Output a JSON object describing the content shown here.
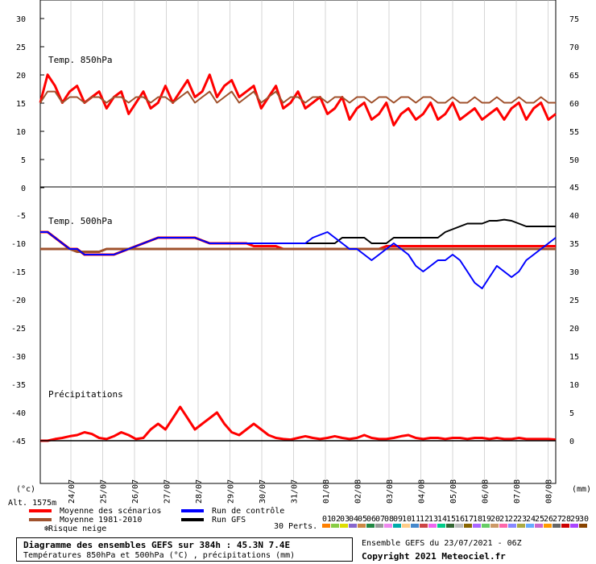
{
  "chart_data": {
    "type": "line",
    "panels": [
      {
        "title": "Temp. 850hPa",
        "y_left_ticks": [
          "30",
          "25",
          "20",
          "15",
          "10",
          "5",
          "0"
        ],
        "y_right_ticks": [
          "75",
          "70",
          "65",
          "60",
          "55",
          "50"
        ],
        "ylim": [
          0,
          30
        ],
        "series": [
          {
            "name": "Moyenne des scénarios",
            "color": "#ff0000",
            "values": [
              15,
              20,
              18,
              15,
              17,
              18,
              15,
              16,
              17,
              14,
              16,
              17,
              13,
              15,
              17,
              14,
              15,
              18,
              15,
              17,
              19,
              16,
              17,
              20,
              16,
              18,
              19,
              16,
              17,
              18,
              14,
              16,
              18,
              14,
              15,
              17,
              14,
              15,
              16,
              13,
              14,
              16,
              12,
              14,
              15,
              12,
              13,
              15,
              11,
              13,
              14,
              12,
              13,
              15,
              12,
              13,
              15,
              12,
              13,
              14,
              12,
              13,
              14,
              12,
              14,
              15,
              12,
              14,
              15,
              12,
              13
            ]
          },
          {
            "name": "Moyenne 1981-2010",
            "color": "#a0522d",
            "values": [
              15,
              17,
              17,
              15,
              16,
              16,
              15,
              16,
              16,
              15,
              16,
              16,
              15,
              16,
              16,
              15,
              16,
              16,
              15,
              16,
              17,
              15,
              16,
              17,
              15,
              16,
              17,
              15,
              16,
              17,
              15,
              16,
              17,
              15,
              16,
              16,
              15,
              16,
              16,
              15,
              16,
              16,
              15,
              16,
              16,
              15,
              16,
              16,
              15,
              16,
              16,
              15,
              16,
              16,
              15,
              15,
              16,
              15,
              15,
              16,
              15,
              15,
              16,
              15,
              15,
              16,
              15,
              15,
              16,
              15,
              15
            ]
          }
        ]
      },
      {
        "title": "Temp. 500hPa",
        "y_left_ticks": [
          "-5",
          "-10",
          "-15",
          "-20"
        ],
        "y_right_ticks": [
          "45",
          "40",
          "35",
          "30",
          "25"
        ],
        "ylim": [
          -20,
          -5
        ],
        "series": [
          {
            "name": "Moyenne des scénarios",
            "color": "#ff0000",
            "values": [
              -8,
              -8,
              -9,
              -10,
              -11,
              -11,
              -12,
              -12,
              -12,
              -12,
              -12,
              -11.5,
              -11,
              -10.5,
              -10,
              -9.5,
              -9,
              -9,
              -9,
              -9,
              -9,
              -9,
              -9.5,
              -10,
              -10,
              -10,
              -10,
              -10,
              -10,
              -10.5,
              -10.5,
              -10.5,
              -10.5,
              -11,
              -11,
              -11,
              -11,
              -11,
              -11,
              -11,
              -11,
              -11,
              -11,
              -11,
              -11,
              -11,
              -11,
              -10.5,
              -10.5,
              -10.5,
              -10.5,
              -10.5,
              -10.5,
              -10.5,
              -10.5,
              -10.5,
              -10.5,
              -10.5,
              -10.5,
              -10.5,
              -10.5,
              -10.5,
              -10.5,
              -10.5,
              -10.5,
              -10.5,
              -10.5,
              -10.5,
              -10.5,
              -10.5,
              -10.5
            ]
          },
          {
            "name": "Moyenne 1981-2010",
            "color": "#a0522d",
            "values": [
              -11,
              -11,
              -11,
              -11,
              -11,
              -11.5,
              -11.5,
              -11.5,
              -11.5,
              -11,
              -11,
              -11,
              -11,
              -11,
              -11,
              -11,
              -11,
              -11,
              -11,
              -11,
              -11,
              -11,
              -11,
              -11,
              -11,
              -11,
              -11,
              -11,
              -11,
              -11,
              -11,
              -11,
              -11,
              -11,
              -11,
              -11,
              -11,
              -11,
              -11,
              -11,
              -11,
              -11,
              -11,
              -11,
              -11,
              -11,
              -11,
              -11,
              -11,
              -11,
              -11,
              -11,
              -11,
              -11,
              -11,
              -11,
              -11,
              -11,
              -11,
              -11,
              -11,
              -11,
              -11,
              -11,
              -11,
              -11,
              -11,
              -11,
              -11,
              -11,
              -11
            ]
          },
          {
            "name": "Run GFS",
            "color": "#000000",
            "values": [
              -8,
              -8,
              -9,
              -10,
              -11,
              -11,
              -12,
              -12,
              -12,
              -12,
              -12,
              -11.5,
              -11,
              -10.5,
              -10,
              -9.5,
              -9,
              -9,
              -9,
              -9,
              -9,
              -9,
              -9.5,
              -10,
              -10,
              -10,
              -10,
              -10,
              -10,
              -10,
              -10,
              -10,
              -10,
              -10,
              -10,
              -10,
              -10,
              -10,
              -10,
              -10,
              -10,
              -9,
              -9,
              -9,
              -9,
              -10,
              -10,
              -10,
              -9,
              -9,
              -9,
              -9,
              -9,
              -9,
              -9,
              -8,
              -7.5,
              -7,
              -6.5,
              -6.5,
              -6.5,
              -6,
              -6,
              -5.8,
              -6,
              -6.5,
              -7,
              -7,
              -7,
              -7,
              -7
            ]
          },
          {
            "name": "Run de contrôle",
            "color": "#0000ff",
            "values": [
              -8,
              -8,
              -9,
              -10,
              -11,
              -11,
              -12,
              -12,
              -12,
              -12,
              -12,
              -11.5,
              -11,
              -10.5,
              -10,
              -9.5,
              -9,
              -9,
              -9,
              -9,
              -9,
              -9,
              -9.5,
              -10,
              -10,
              -10,
              -10,
              -10,
              -10,
              -10,
              -10,
              -10,
              -10,
              -10,
              -10,
              -10,
              -10,
              -9,
              -8.5,
              -8,
              -9,
              -10,
              -11,
              -11,
              -12,
              -13,
              -12,
              -11,
              -10,
              -11,
              -12,
              -14,
              -15,
              -14,
              -13,
              -13,
              -12,
              -13,
              -15,
              -17,
              -18,
              -16,
              -14,
              -15,
              -16,
              -15,
              -13,
              -12,
              -11,
              -10,
              -9
            ]
          }
        ]
      },
      {
        "title": "Précipitations",
        "y_left_ticks": [
          "-25",
          "-30",
          "-35",
          "-40",
          "-45"
        ],
        "y_right_ticks": [
          "20",
          "15",
          "10",
          "5",
          "0"
        ],
        "ylim": [
          0,
          25
        ],
        "series": [
          {
            "name": "Moyenne des scénarios",
            "color": "#ff0000",
            "values": [
              0,
              0,
              0.3,
              0.5,
              0.8,
              1,
              1.5,
              1.2,
              0.5,
              0.3,
              0.8,
              1.5,
              1,
              0.3,
              0.5,
              2,
              3,
              2,
              4,
              6,
              4,
              2,
              3,
              4,
              5,
              3,
              1.5,
              1,
              2,
              3,
              2,
              1,
              0.5,
              0.3,
              0.2,
              0.5,
              0.8,
              0.5,
              0.3,
              0.5,
              0.8,
              0.5,
              0.3,
              0.5,
              1,
              0.5,
              0.3,
              0.3,
              0.5,
              0.8,
              1,
              0.5,
              0.3,
              0.5,
              0.5,
              0.3,
              0.5,
              0.5,
              0.3,
              0.5,
              0.5,
              0.3,
              0.5,
              0.3,
              0.3,
              0.5,
              0.3,
              0.3,
              0.3,
              0.3,
              0.2
            ]
          },
          {
            "name": "Run GFS",
            "color": "#000000",
            "values": [
              0,
              0,
              0,
              0,
              0,
              0,
              0,
              0,
              0,
              0,
              0,
              0,
              0,
              0,
              0,
              0,
              0,
              0,
              0,
              0,
              0,
              0,
              0,
              0,
              0,
              0,
              0,
              0,
              0,
              0,
              0,
              0,
              0,
              0,
              0,
              0,
              0,
              0,
              0,
              0,
              0,
              0,
              0,
              0,
              0,
              0,
              0,
              0,
              0,
              0,
              0,
              0,
              0,
              0,
              0,
              0,
              0,
              0,
              0,
              0,
              0,
              0,
              0,
              0,
              0,
              0,
              0,
              0,
              0,
              0,
              0
            ]
          }
        ]
      }
    ],
    "x_tick_labels": [
      "24/07",
      "25/07",
      "26/07",
      "27/07",
      "28/07",
      "29/07",
      "30/07",
      "31/07",
      "01/08",
      "02/08",
      "03/08",
      "04/08",
      "05/08",
      "06/08",
      "07/08",
      "08/08"
    ],
    "legend": [
      {
        "name": "Moyenne des scénarios",
        "color": "#ff0000"
      },
      {
        "name": "Moyenne 1981-2010",
        "color": "#a0522d"
      },
      {
        "name": "Run de contrôle",
        "color": "#0000ff"
      },
      {
        "name": "Run GFS",
        "color": "#000000"
      },
      {
        "name": "Risque neige",
        "color": "#4aa0ff"
      }
    ],
    "perturbations_label": "30 Perts.",
    "perturbation_ids": [
      "01",
      "02",
      "03",
      "04",
      "05",
      "06",
      "07",
      "08",
      "09",
      "10",
      "11",
      "12",
      "13",
      "14",
      "15",
      "16",
      "17",
      "18",
      "19",
      "20",
      "21",
      "22",
      "23",
      "24",
      "25",
      "26",
      "27",
      "28",
      "29",
      "30"
    ],
    "perturbation_colors": [
      "#ff8000",
      "#88cc44",
      "#dddd00",
      "#8866cc",
      "#cc8844",
      "#228844",
      "#999999",
      "#ee88ee",
      "#00aaaa",
      "#ffcc88",
      "#4488cc",
      "#cc4444",
      "#ee66ee",
      "#00cc88",
      "#336633",
      "#bbbbbb",
      "#886600",
      "#aa66ff",
      "#66cc66",
      "#cc9966",
      "#ff66aa",
      "#8888ff",
      "#aaaa44",
      "#66aaff",
      "#cc66cc",
      "#ff9900",
      "#666666",
      "#cc0000",
      "#aa44ff",
      "#884400"
    ],
    "y_left_unit": "(°c)",
    "y_right_unit": "(mm)",
    "altitude": "Alt. 1575m",
    "title": "Diagramme des ensembles GEFS sur 384h : 45.3N 7.4E",
    "subtitle": "Températures 850hPa et 500hPa (°C) , précipitations (mm)",
    "ensemble_run": "Ensemble GEFS du 23/07/2021 - 06Z",
    "copyright": "Copyright 2021 Meteociel.fr"
  }
}
